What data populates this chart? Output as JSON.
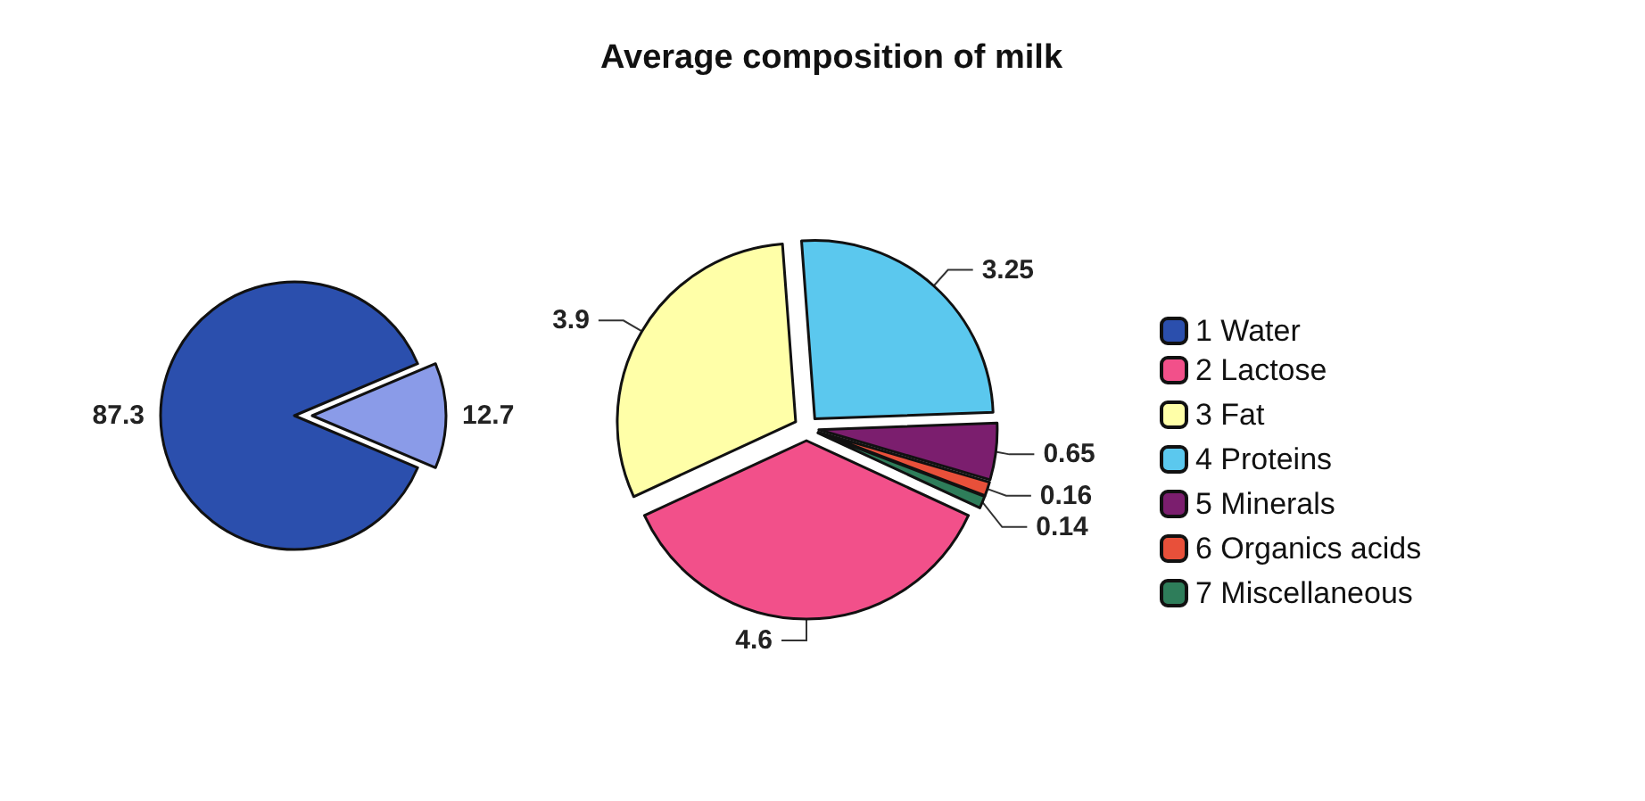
{
  "chart_data": [
    {
      "type": "pie",
      "categories": [
        "1 Water",
        null
      ],
      "values": [
        87.3,
        12.7
      ],
      "colors": [
        "#2b4fad",
        "#8a9be8"
      ],
      "data_labels": true,
      "legend": "right"
    },
    {
      "type": "pie",
      "title": "Average composition of milk",
      "categories": [
        "2 Lactose",
        "3 Fat",
        "4 Proteins",
        "5 Minerals",
        "6 Organics acids",
        "7 Miscellaneous"
      ],
      "values": [
        4.6,
        3.9,
        3.25,
        0.65,
        0.16,
        0.14
      ],
      "colors": [
        "#f2508a",
        "#ffffa8",
        "#5bc8ee",
        "#7b1e6e",
        "#e8503a",
        "#2e7d5a"
      ],
      "data_labels": true,
      "legend": "right"
    }
  ]
}
